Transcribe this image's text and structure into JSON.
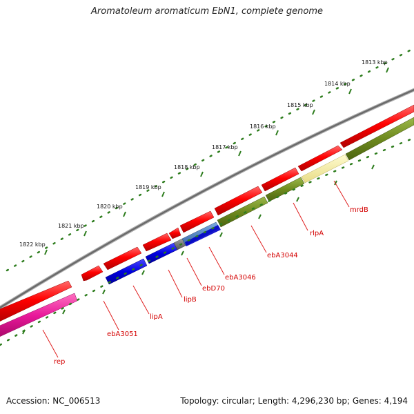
{
  "title": "Aromatoleum aromaticum EbN1, complete genome",
  "footer": {
    "accession": "Accession: NC_006513",
    "summary": "Topology: circular; Length: 4,296,230 bp; Genes: 4,194"
  },
  "ruler_ticks": [
    {
      "label": "1813 kbp"
    },
    {
      "label": "1814 kbp"
    },
    {
      "label": "1815 kbp"
    },
    {
      "label": "1816 kbp"
    },
    {
      "label": "1817 kbp"
    },
    {
      "label": "1818 kbp"
    },
    {
      "label": "1819 kbp"
    },
    {
      "label": "1820 kbp"
    },
    {
      "label": "1821 kbp"
    },
    {
      "label": "1822 kbp"
    }
  ],
  "gene_labels": [
    {
      "label": "mrdB"
    },
    {
      "label": "rlpA"
    },
    {
      "label": "ebA3044"
    },
    {
      "label": "ebA3046"
    },
    {
      "label": "ebD70"
    },
    {
      "label": "lipB"
    },
    {
      "label": "lipA"
    },
    {
      "label": "ebA3051"
    },
    {
      "label": "rep"
    }
  ],
  "colors": {
    "backbone": "#808080",
    "cds": "#ee0000",
    "track_olive": "#6e8a1e",
    "track_yellow": "#f4ec9c",
    "track_blue": "#0a0ad8",
    "track_steel": "#4a7fc0",
    "track_gray": "#707070",
    "track_pink": "#e0188c",
    "ruler": "#2e7d1e",
    "label": "#d40000"
  }
}
